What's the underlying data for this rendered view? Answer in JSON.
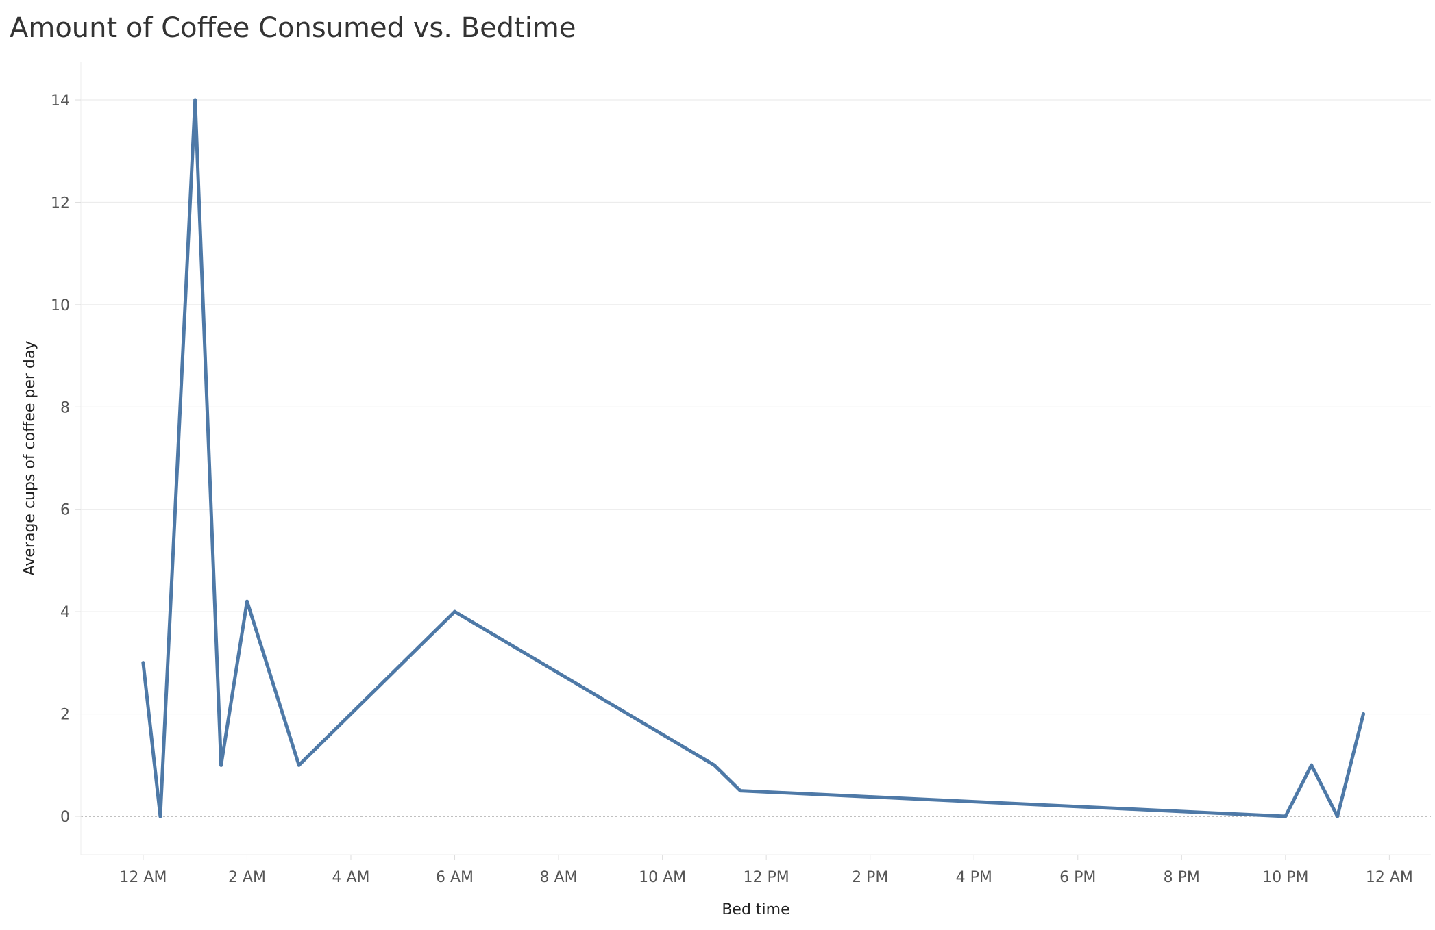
{
  "chart_data": {
    "type": "line",
    "title": "Amount of Coffee Consumed vs. Bedtime",
    "xlabel": "Bed time",
    "ylabel": "Average cups of coffee per day",
    "x_unit": "hours since 12 AM",
    "xlim": [
      -1.2,
      24.8
    ],
    "ylim": [
      -0.75,
      14.75
    ],
    "x_ticks": [
      {
        "value": 0,
        "label": "12 AM"
      },
      {
        "value": 2,
        "label": "2 AM"
      },
      {
        "value": 4,
        "label": "4 AM"
      },
      {
        "value": 6,
        "label": "6 AM"
      },
      {
        "value": 8,
        "label": "8 AM"
      },
      {
        "value": 10,
        "label": "10 AM"
      },
      {
        "value": 12,
        "label": "12 PM"
      },
      {
        "value": 14,
        "label": "2 PM"
      },
      {
        "value": 16,
        "label": "4 PM"
      },
      {
        "value": 18,
        "label": "6 PM"
      },
      {
        "value": 20,
        "label": "8 PM"
      },
      {
        "value": 22,
        "label": "10 PM"
      },
      {
        "value": 24,
        "label": "12 AM"
      }
    ],
    "y_ticks": [
      0,
      2,
      4,
      6,
      8,
      10,
      12,
      14
    ],
    "grid": true,
    "zero_line": "dashed",
    "series": [
      {
        "color": "#4e79a7",
        "x": [
          0,
          0.33,
          1,
          1.5,
          2,
          3,
          6,
          11,
          11.5,
          22,
          22.5,
          23,
          23.5
        ],
        "y": [
          3,
          0,
          14,
          1,
          4.2,
          1,
          4,
          1,
          0.5,
          0,
          1,
          0,
          2
        ]
      }
    ]
  }
}
